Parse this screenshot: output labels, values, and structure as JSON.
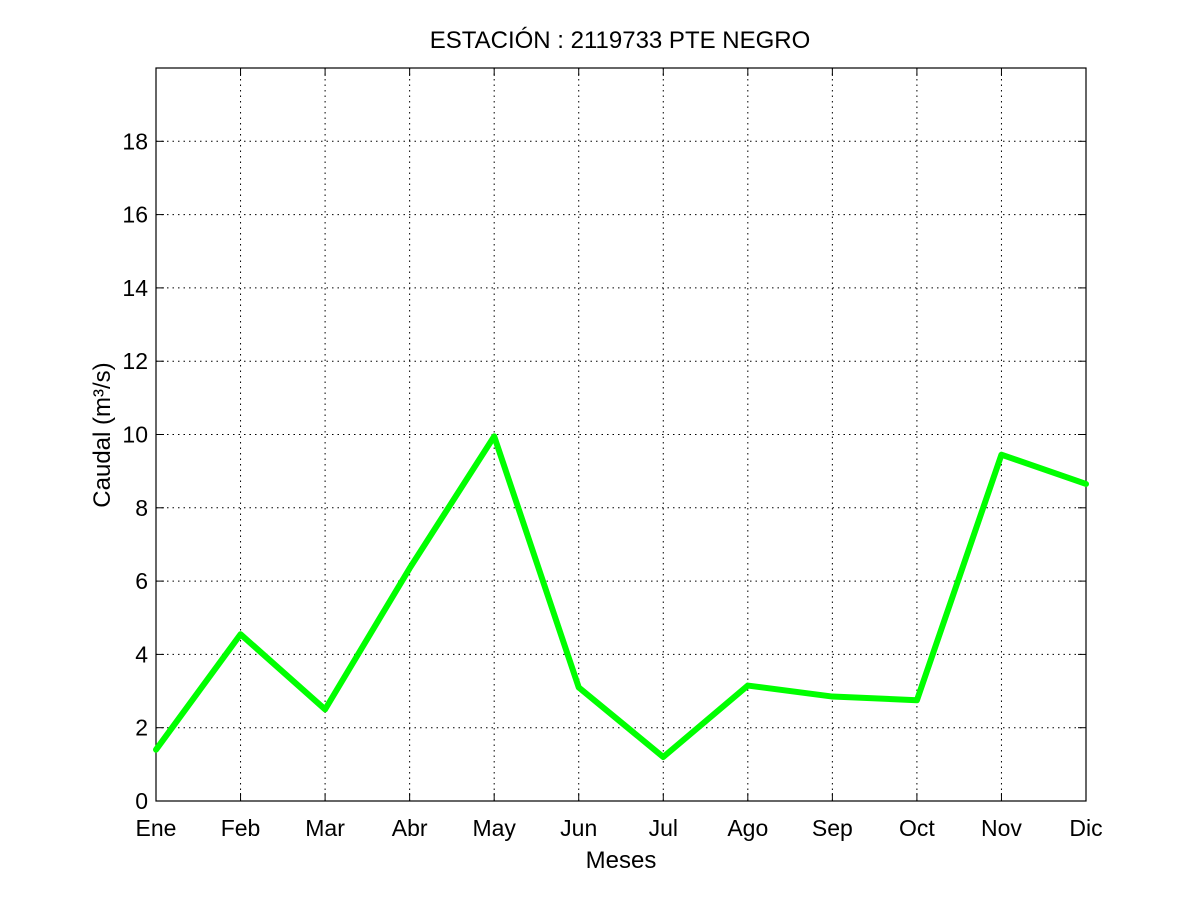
{
  "chart_data": {
    "type": "line",
    "title": "ESTACIÓN :  2119733  PTE NEGRO",
    "xlabel": "Meses",
    "ylabel": "Caudal (m³/s)",
    "categories": [
      "Ene",
      "Feb",
      "Mar",
      "Abr",
      "May",
      "Jun",
      "Jul",
      "Ago",
      "Sep",
      "Oct",
      "Nov",
      "Dic"
    ],
    "series": [
      {
        "values": [
          1.4,
          4.55,
          2.5,
          6.35,
          9.95,
          3.1,
          1.2,
          3.15,
          2.85,
          2.75,
          9.45,
          8.65
        ],
        "color": "#00ff00"
      }
    ],
    "ylim": [
      0,
      20
    ],
    "yticks": [
      0,
      2,
      4,
      6,
      8,
      10,
      12,
      14,
      16,
      18
    ],
    "grid": true
  }
}
